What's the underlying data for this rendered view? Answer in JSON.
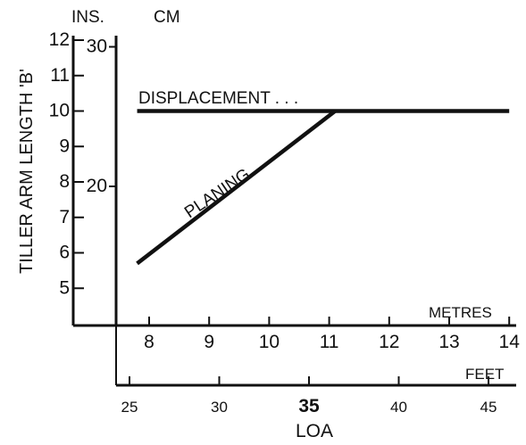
{
  "chart_data": {
    "type": "line",
    "ylabel": "TILLER ARM LENGTH 'B'",
    "y_units_left": "INS.",
    "y_units_right": "CM",
    "xlabel": "LOA",
    "x_units_top": "METRES",
    "x_units_bottom": "FEET",
    "x_metres": {
      "ticks": [
        8,
        9,
        10,
        11,
        12,
        13,
        14
      ],
      "range": [
        7.3,
        14
      ]
    },
    "x_feet": {
      "ticks": [
        25,
        30,
        35,
        40,
        45
      ],
      "range": [
        24.4,
        46
      ]
    },
    "y_inches": {
      "ticks": [
        5,
        6,
        7,
        8,
        9,
        10,
        11,
        12
      ],
      "range": [
        4,
        12
      ]
    },
    "y_cm": {
      "ticks": [
        20,
        30
      ]
    },
    "series": [
      {
        "name": "DISPLACEMENT",
        "label_text": "DISPLACEMENT . . .",
        "x_metres": [
          7.8,
          14.0
        ],
        "y_inches": [
          10.0,
          10.0
        ]
      },
      {
        "name": "PLANING",
        "label_text": "PLANING",
        "x_metres": [
          7.8,
          11.1
        ],
        "y_inches": [
          5.7,
          10.0
        ]
      }
    ]
  }
}
